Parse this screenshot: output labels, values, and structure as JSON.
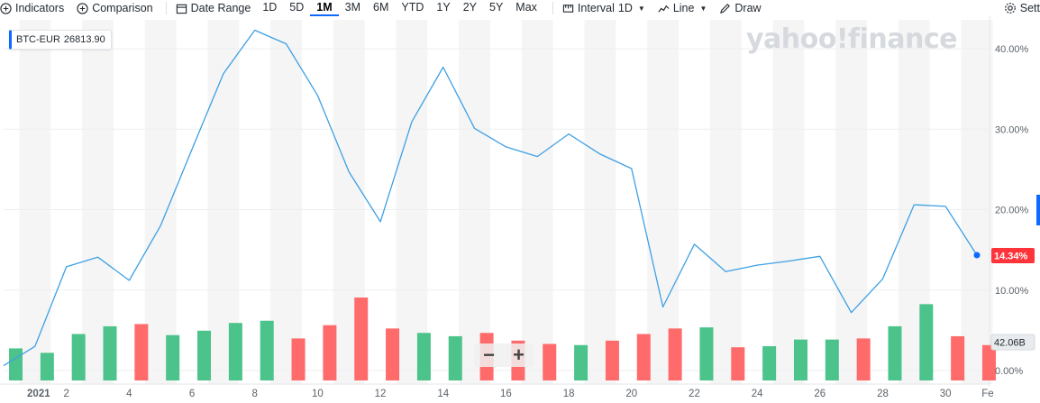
{
  "toolbar": {
    "indicators": "Indicators",
    "comparison": "Comparison",
    "date_range": "Date Range",
    "ranges": [
      "1D",
      "5D",
      "1M",
      "3M",
      "6M",
      "YTD",
      "1Y",
      "2Y",
      "5Y",
      "Max"
    ],
    "active_range": "1M",
    "interval_label": "Interval",
    "interval_value": "1D",
    "line": "Line",
    "draw": "Draw",
    "settings": "Sett"
  },
  "ticker": {
    "symbol": "BTC-EUR",
    "price": "26813.90"
  },
  "brand": "yahoo!finance",
  "zoom": {
    "minus": "−",
    "plus": "+"
  },
  "colors": {
    "line": "#3ea0e4",
    "up": "#4cc38a",
    "down": "#ff6b6b",
    "accent": "#0f69ff",
    "badge_red": "#ff333a",
    "badge_gray": "#5b636a"
  },
  "chart_data": {
    "type": "line",
    "title": "",
    "xlabel": "",
    "ylabel": "",
    "x": [
      "Dec 31",
      "Jan 1",
      "Jan 2",
      "Jan 3",
      "Jan 4",
      "Jan 5",
      "Jan 6",
      "Jan 7",
      "Jan 8",
      "Jan 9",
      "Jan 10",
      "Jan 11",
      "Jan 12",
      "Jan 13",
      "Jan 14",
      "Jan 15",
      "Jan 16",
      "Jan 17",
      "Jan 18",
      "Jan 19",
      "Jan 20",
      "Jan 21",
      "Jan 22",
      "Jan 23",
      "Jan 24",
      "Jan 25",
      "Jan 26",
      "Jan 27",
      "Jan 28",
      "Jan 29",
      "Jan 30",
      "Jan 31"
    ],
    "series": [
      {
        "values": [
          0.6,
          3.0,
          12.9,
          14.1,
          11.2,
          18.0,
          27.5,
          36.9,
          42.3,
          40.6,
          34.2,
          24.7,
          18.5,
          30.9,
          37.7,
          30.1,
          27.8,
          26.6,
          29.4,
          26.9,
          25.1,
          7.9,
          15.7,
          12.3,
          13.1,
          13.6,
          14.2,
          7.2,
          11.4,
          20.6,
          20.4,
          14.34
        ]
      }
    ],
    "volume": {
      "values": [
        2.9,
        2.5,
        4.2,
        4.9,
        5.1,
        4.1,
        4.5,
        5.2,
        5.4,
        3.8,
        5.0,
        7.5,
        4.7,
        4.3,
        4.0,
        4.3,
        3.6,
        3.3,
        3.2,
        3.6,
        4.2,
        4.7,
        4.8,
        3.0,
        3.1,
        3.7,
        3.7,
        3.8,
        4.9,
        6.9,
        4.0,
        3.2
      ],
      "direction": [
        "up",
        "up",
        "up",
        "up",
        "down",
        "up",
        "up",
        "up",
        "up",
        "down",
        "down",
        "down",
        "down",
        "up",
        "up",
        "down",
        "down",
        "down",
        "up",
        "down",
        "down",
        "down",
        "up",
        "down",
        "up",
        "up",
        "up",
        "down",
        "up",
        "up",
        "down",
        "down"
      ]
    },
    "x_ticks": [
      "2021",
      "2",
      "4",
      "6",
      "8",
      "10",
      "12",
      "14",
      "16",
      "18",
      "20",
      "22",
      "24",
      "26",
      "28",
      "30",
      "Fe"
    ],
    "y_ticks": [
      "0.00%",
      "10.00%",
      "20.00%",
      "30.00%",
      "40.00%"
    ],
    "ylim": [
      -2,
      45
    ],
    "last_value_label": "14.34%",
    "volume_label": "42.06B",
    "grid": true
  }
}
